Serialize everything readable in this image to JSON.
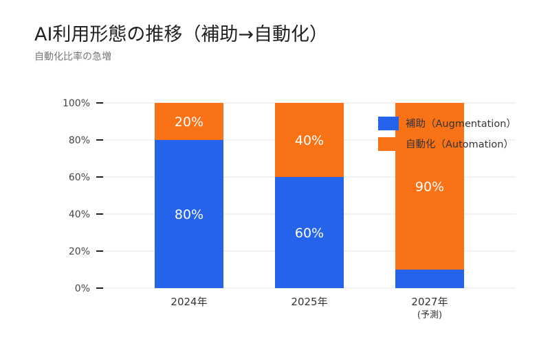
{
  "title": "AI利用形態の推移（補助→自動化）",
  "subtitle": "自動化比率の急増",
  "chart_data": {
    "type": "bar",
    "stacked": true,
    "categories": [
      "2024年",
      "2025年",
      "2027年\n(予測)"
    ],
    "series": [
      {
        "name": "補助（Augmentation）",
        "values": [
          80,
          60,
          10
        ],
        "labels": [
          "80%",
          "60%",
          ""
        ],
        "color": "#2563eb"
      },
      {
        "name": "自動化（Automation）",
        "values": [
          20,
          40,
          90
        ],
        "labels": [
          "20%",
          "40%",
          "90%"
        ],
        "color": "#f97316"
      }
    ],
    "ylim": [
      0,
      100
    ],
    "yticks": [
      0,
      20,
      40,
      60,
      80,
      100
    ],
    "ytick_labels": [
      "0%",
      "20%",
      "40%",
      "60%",
      "80%",
      "100%"
    ],
    "xlabel": "",
    "ylabel": "",
    "grid": true,
    "legend_position": "top-right"
  }
}
